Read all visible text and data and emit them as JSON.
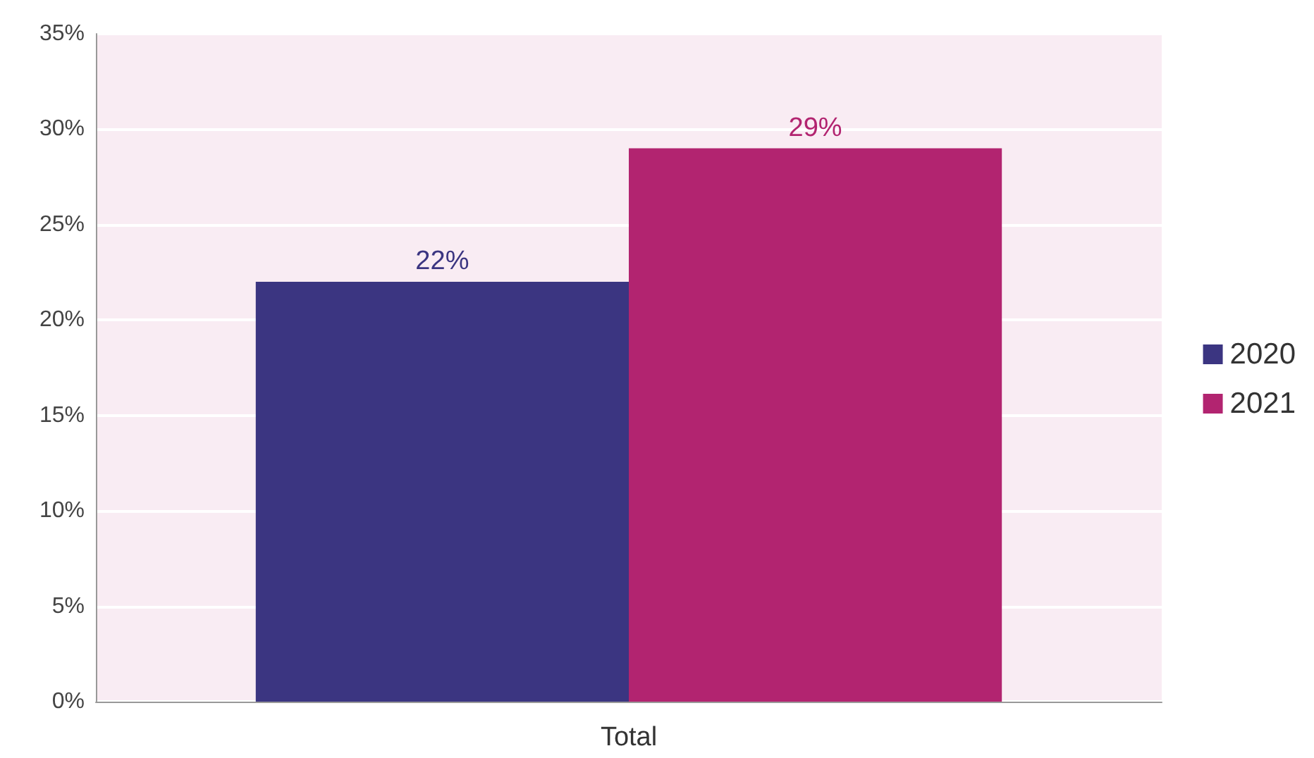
{
  "chart_data": {
    "type": "bar",
    "categories": [
      "Total"
    ],
    "series": [
      {
        "name": "2020",
        "color": "#3b3581",
        "values": [
          22
        ],
        "value_labels": [
          "22%"
        ]
      },
      {
        "name": "2021",
        "color": "#b22470",
        "values": [
          29
        ],
        "value_labels": [
          "29%"
        ]
      }
    ],
    "ylim": [
      0,
      35
    ],
    "yticks": [
      {
        "value": 0,
        "label": "0%"
      },
      {
        "value": 5,
        "label": "5%"
      },
      {
        "value": 10,
        "label": "10%"
      },
      {
        "value": 15,
        "label": "15%"
      },
      {
        "value": 20,
        "label": "20%"
      },
      {
        "value": 25,
        "label": "25%"
      },
      {
        "value": 30,
        "label": "30%"
      },
      {
        "value": 35,
        "label": "35%"
      }
    ],
    "grid": "y",
    "legend": "right"
  }
}
